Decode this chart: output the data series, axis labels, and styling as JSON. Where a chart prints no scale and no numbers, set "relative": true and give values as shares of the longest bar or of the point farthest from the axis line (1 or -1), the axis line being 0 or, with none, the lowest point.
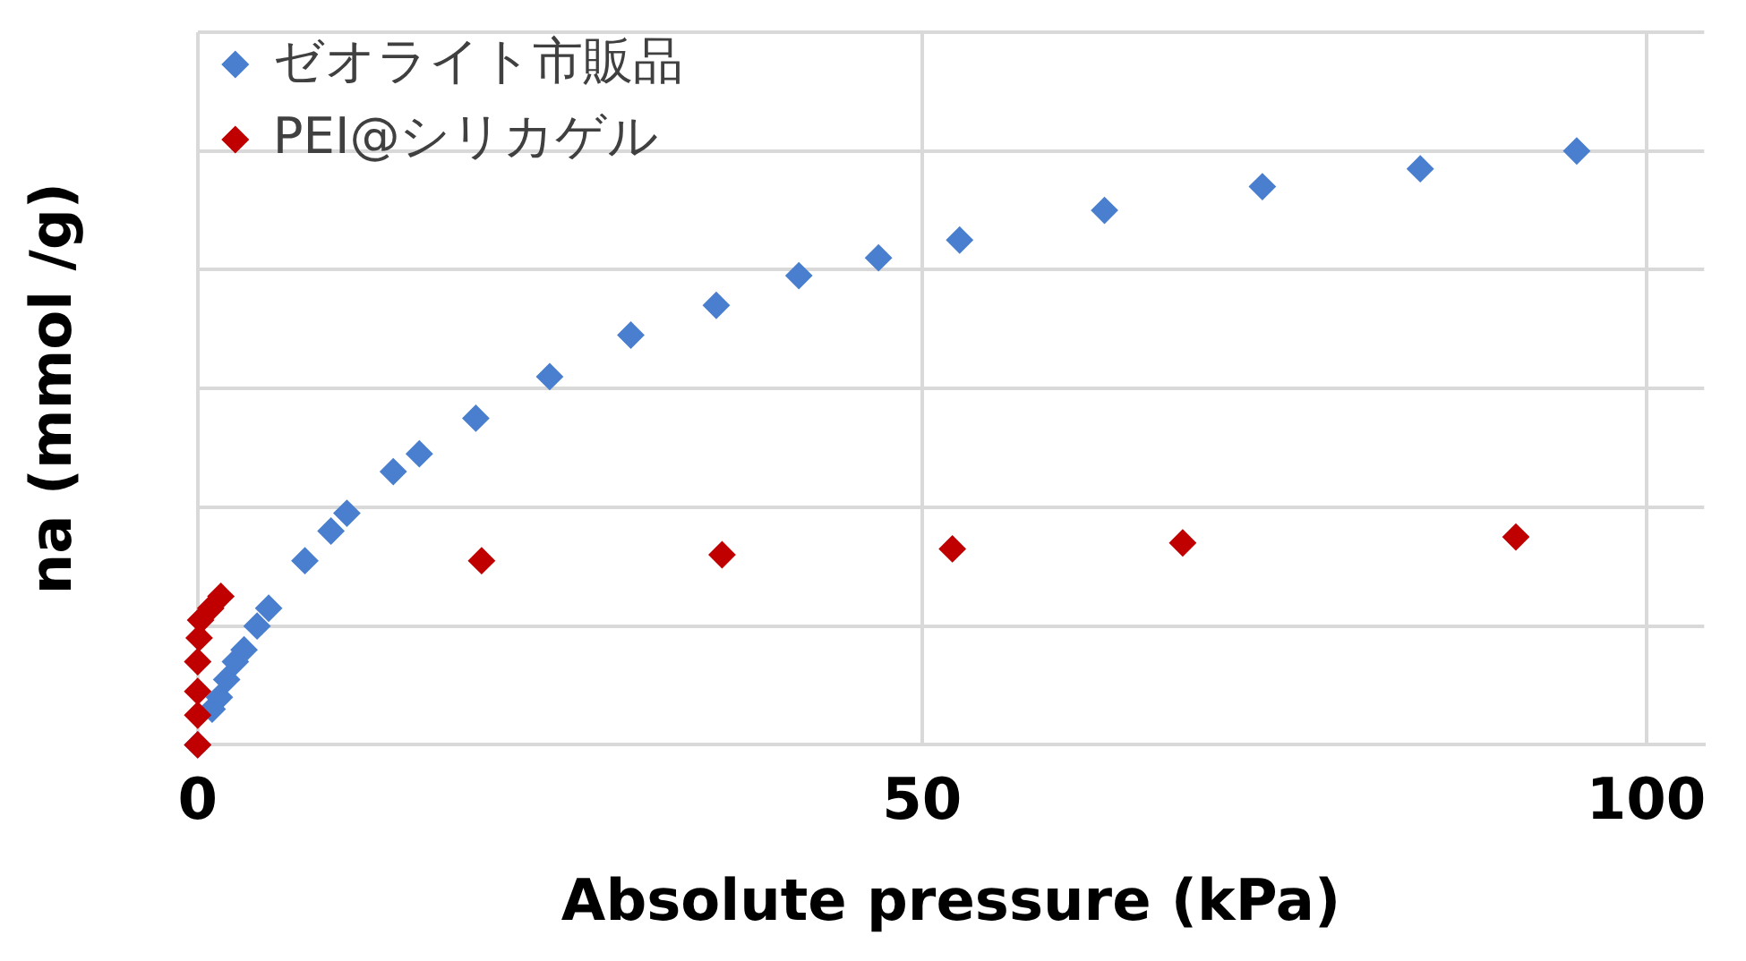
{
  "chart_data": {
    "type": "scatter",
    "xlabel": "Absolute pressure (kPa)",
    "ylabel": "na (mmol /g)",
    "relative": true,
    "xlim": [
      0,
      104
    ],
    "xticks": [
      0,
      50,
      100
    ],
    "grid": true,
    "legend": "top left",
    "marker": "diamond",
    "series": [
      {
        "name": "ゼオライト市販品",
        "color": "#4a7fcf",
        "x": [
          0,
          0.5,
          1,
          1.5,
          2,
          2.6,
          3.2,
          4.1,
          4.9,
          7.4,
          9.2,
          10.3,
          13.5,
          15.3,
          19.2,
          24.3,
          29.9,
          35.8,
          41.5,
          47.0,
          52.6,
          62.6,
          73.5,
          84.4,
          95.2
        ],
        "values": [
          0,
          null,
          0.06,
          0.08,
          0.11,
          0.14,
          0.16,
          0.2,
          0.23,
          0.31,
          0.36,
          0.39,
          0.46,
          0.49,
          0.55,
          0.62,
          0.69,
          0.74,
          0.79,
          0.82,
          0.85,
          0.9,
          0.94,
          0.97,
          1
        ]
      },
      {
        "name": "PEI@シリカゲル",
        "color": "#c00000",
        "x": [
          0,
          0,
          0,
          0,
          0.1,
          0.2,
          0.9,
          1.6,
          19.6,
          36.2,
          52.1,
          68.0,
          91.0
        ],
        "values": [
          0,
          0.05,
          0.09,
          0.14,
          0.18,
          0.21,
          0.23,
          0.25,
          0.31,
          0.32,
          0.33,
          0.34,
          0.35
        ]
      }
    ]
  }
}
